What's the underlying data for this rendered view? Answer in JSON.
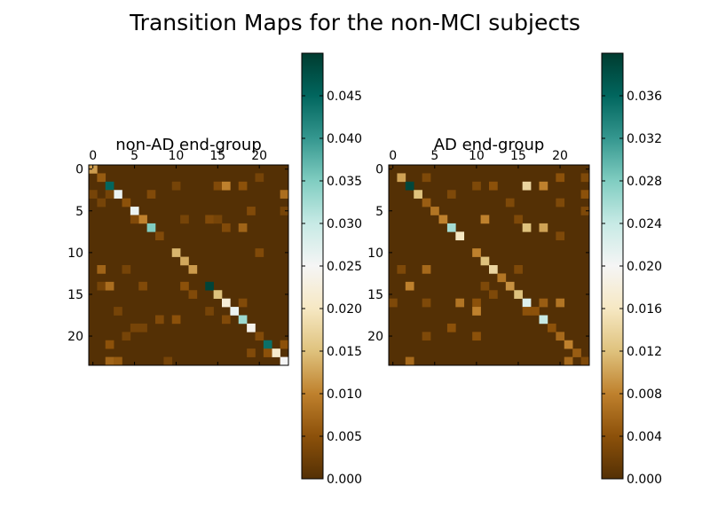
{
  "suptitle": "Transition Maps for the non-MCI subjects",
  "chart_data": [
    {
      "type": "heatmap",
      "title": "non-AD end-group",
      "n": 24,
      "x_ticks": [
        0,
        5,
        10,
        15,
        20
      ],
      "y_ticks": [
        0,
        5,
        10,
        15,
        20
      ],
      "x_tick_labels": [
        "0",
        "5",
        "10",
        "15",
        "20"
      ],
      "y_tick_labels": [
        "0",
        "5",
        "10",
        "15",
        "20"
      ],
      "colorbar": {
        "min": 0.0,
        "max": 0.05,
        "ticks": [
          0.0,
          0.005,
          0.01,
          0.015,
          0.02,
          0.025,
          0.03,
          0.035,
          0.04,
          0.045
        ],
        "tick_labels": [
          "0.000",
          "0.005",
          "0.010",
          "0.015",
          "0.020",
          "0.025",
          "0.030",
          "0.035",
          "0.040",
          "0.045"
        ]
      },
      "cells": [
        [
          0,
          0,
          0.012
        ],
        [
          1,
          1,
          0.006
        ],
        [
          2,
          2,
          0.045
        ],
        [
          3,
          3,
          0.026
        ],
        [
          4,
          4,
          0.005
        ],
        [
          5,
          5,
          0.026
        ],
        [
          6,
          6,
          0.01
        ],
        [
          7,
          7,
          0.035
        ],
        [
          8,
          8,
          0.004
        ],
        [
          10,
          10,
          0.014
        ],
        [
          11,
          11,
          0.013
        ],
        [
          12,
          12,
          0.012
        ],
        [
          14,
          14,
          0.049
        ],
        [
          15,
          15,
          0.015
        ],
        [
          16,
          16,
          0.022
        ],
        [
          17,
          17,
          0.026
        ],
        [
          18,
          18,
          0.033
        ],
        [
          19,
          19,
          0.024
        ],
        [
          21,
          21,
          0.044
        ],
        [
          22,
          22,
          0.021
        ],
        [
          23,
          23,
          0.025
        ],
        [
          3,
          0,
          0.003
        ],
        [
          4,
          1,
          0.003
        ],
        [
          3,
          2,
          0.003
        ],
        [
          2,
          10,
          0.003
        ],
        [
          2,
          15,
          0.004
        ],
        [
          2,
          16,
          0.01
        ],
        [
          2,
          18,
          0.005
        ],
        [
          1,
          20,
          0.003
        ],
        [
          3,
          7,
          0.004
        ],
        [
          3,
          23,
          0.008
        ],
        [
          5,
          19,
          0.004
        ],
        [
          5,
          23,
          0.003
        ],
        [
          6,
          5,
          0.004
        ],
        [
          6,
          11,
          0.003
        ],
        [
          6,
          14,
          0.004
        ],
        [
          6,
          15,
          0.003
        ],
        [
          7,
          16,
          0.004
        ],
        [
          7,
          18,
          0.007
        ],
        [
          10,
          20,
          0.004
        ],
        [
          12,
          1,
          0.007
        ],
        [
          12,
          4,
          0.003
        ],
        [
          14,
          1,
          0.003
        ],
        [
          14,
          2,
          0.008
        ],
        [
          14,
          6,
          0.004
        ],
        [
          14,
          11,
          0.005
        ],
        [
          15,
          12,
          0.004
        ],
        [
          16,
          18,
          0.004
        ],
        [
          17,
          3,
          0.003
        ],
        [
          17,
          14,
          0.003
        ],
        [
          18,
          8,
          0.004
        ],
        [
          18,
          10,
          0.005
        ],
        [
          18,
          16,
          0.004
        ],
        [
          19,
          5,
          0.003
        ],
        [
          19,
          6,
          0.003
        ],
        [
          20,
          4,
          0.003
        ],
        [
          20,
          20,
          0.004
        ],
        [
          21,
          2,
          0.005
        ],
        [
          21,
          23,
          0.005
        ],
        [
          22,
          19,
          0.004
        ],
        [
          22,
          21,
          0.005
        ],
        [
          23,
          2,
          0.007
        ],
        [
          23,
          3,
          0.006
        ],
        [
          23,
          9,
          0.003
        ]
      ]
    },
    {
      "type": "heatmap",
      "title": "AD end-group",
      "n": 24,
      "x_ticks": [
        0,
        5,
        10,
        15,
        20
      ],
      "y_ticks": [
        0,
        5,
        10,
        15,
        20
      ],
      "x_tick_labels": [
        "0",
        "5",
        "10",
        "15",
        "20"
      ],
      "y_tick_labels": [
        "0",
        "5",
        "10",
        "15",
        "20"
      ],
      "colorbar": {
        "min": 0.0,
        "max": 0.04,
        "ticks": [
          0.0,
          0.004,
          0.008,
          0.012,
          0.016,
          0.02,
          0.024,
          0.028,
          0.032,
          0.036
        ],
        "tick_labels": [
          "0.000",
          "0.004",
          "0.008",
          "0.012",
          "0.016",
          "0.020",
          "0.024",
          "0.028",
          "0.032",
          "0.036"
        ]
      },
      "cells": [
        [
          1,
          1,
          0.01
        ],
        [
          2,
          2,
          0.039
        ],
        [
          3,
          3,
          0.012
        ],
        [
          4,
          4,
          0.005
        ],
        [
          5,
          5,
          0.007
        ],
        [
          6,
          6,
          0.008
        ],
        [
          7,
          7,
          0.026
        ],
        [
          8,
          8,
          0.016
        ],
        [
          10,
          10,
          0.008
        ],
        [
          11,
          11,
          0.012
        ],
        [
          12,
          12,
          0.014
        ],
        [
          13,
          13,
          0.007
        ],
        [
          14,
          14,
          0.009
        ],
        [
          15,
          15,
          0.012
        ],
        [
          16,
          16,
          0.022
        ],
        [
          17,
          17,
          0.004
        ],
        [
          18,
          18,
          0.024
        ],
        [
          19,
          19,
          0.004
        ],
        [
          20,
          20,
          0.006
        ],
        [
          21,
          21,
          0.008
        ],
        [
          22,
          22,
          0.005
        ],
        [
          23,
          23,
          0.003
        ],
        [
          1,
          4,
          0.003
        ],
        [
          1,
          20,
          0.004
        ],
        [
          1,
          23,
          0.003
        ],
        [
          2,
          10,
          0.003
        ],
        [
          2,
          12,
          0.004
        ],
        [
          2,
          16,
          0.014
        ],
        [
          2,
          18,
          0.008
        ],
        [
          3,
          7,
          0.003
        ],
        [
          3,
          23,
          0.004
        ],
        [
          4,
          14,
          0.003
        ],
        [
          4,
          20,
          0.003
        ],
        [
          5,
          23,
          0.003
        ],
        [
          6,
          11,
          0.008
        ],
        [
          6,
          15,
          0.003
        ],
        [
          7,
          16,
          0.012
        ],
        [
          7,
          18,
          0.01
        ],
        [
          8,
          20,
          0.003
        ],
        [
          12,
          1,
          0.003
        ],
        [
          12,
          4,
          0.006
        ],
        [
          12,
          15,
          0.003
        ],
        [
          14,
          2,
          0.008
        ],
        [
          14,
          11,
          0.003
        ],
        [
          15,
          12,
          0.003
        ],
        [
          16,
          0,
          0.003
        ],
        [
          16,
          4,
          0.003
        ],
        [
          16,
          8,
          0.007
        ],
        [
          16,
          10,
          0.004
        ],
        [
          16,
          18,
          0.005
        ],
        [
          16,
          20,
          0.007
        ],
        [
          17,
          10,
          0.008
        ],
        [
          17,
          16,
          0.004
        ],
        [
          19,
          7,
          0.004
        ],
        [
          20,
          4,
          0.003
        ],
        [
          20,
          10,
          0.004
        ],
        [
          23,
          2,
          0.006
        ],
        [
          23,
          21,
          0.006
        ]
      ]
    }
  ]
}
